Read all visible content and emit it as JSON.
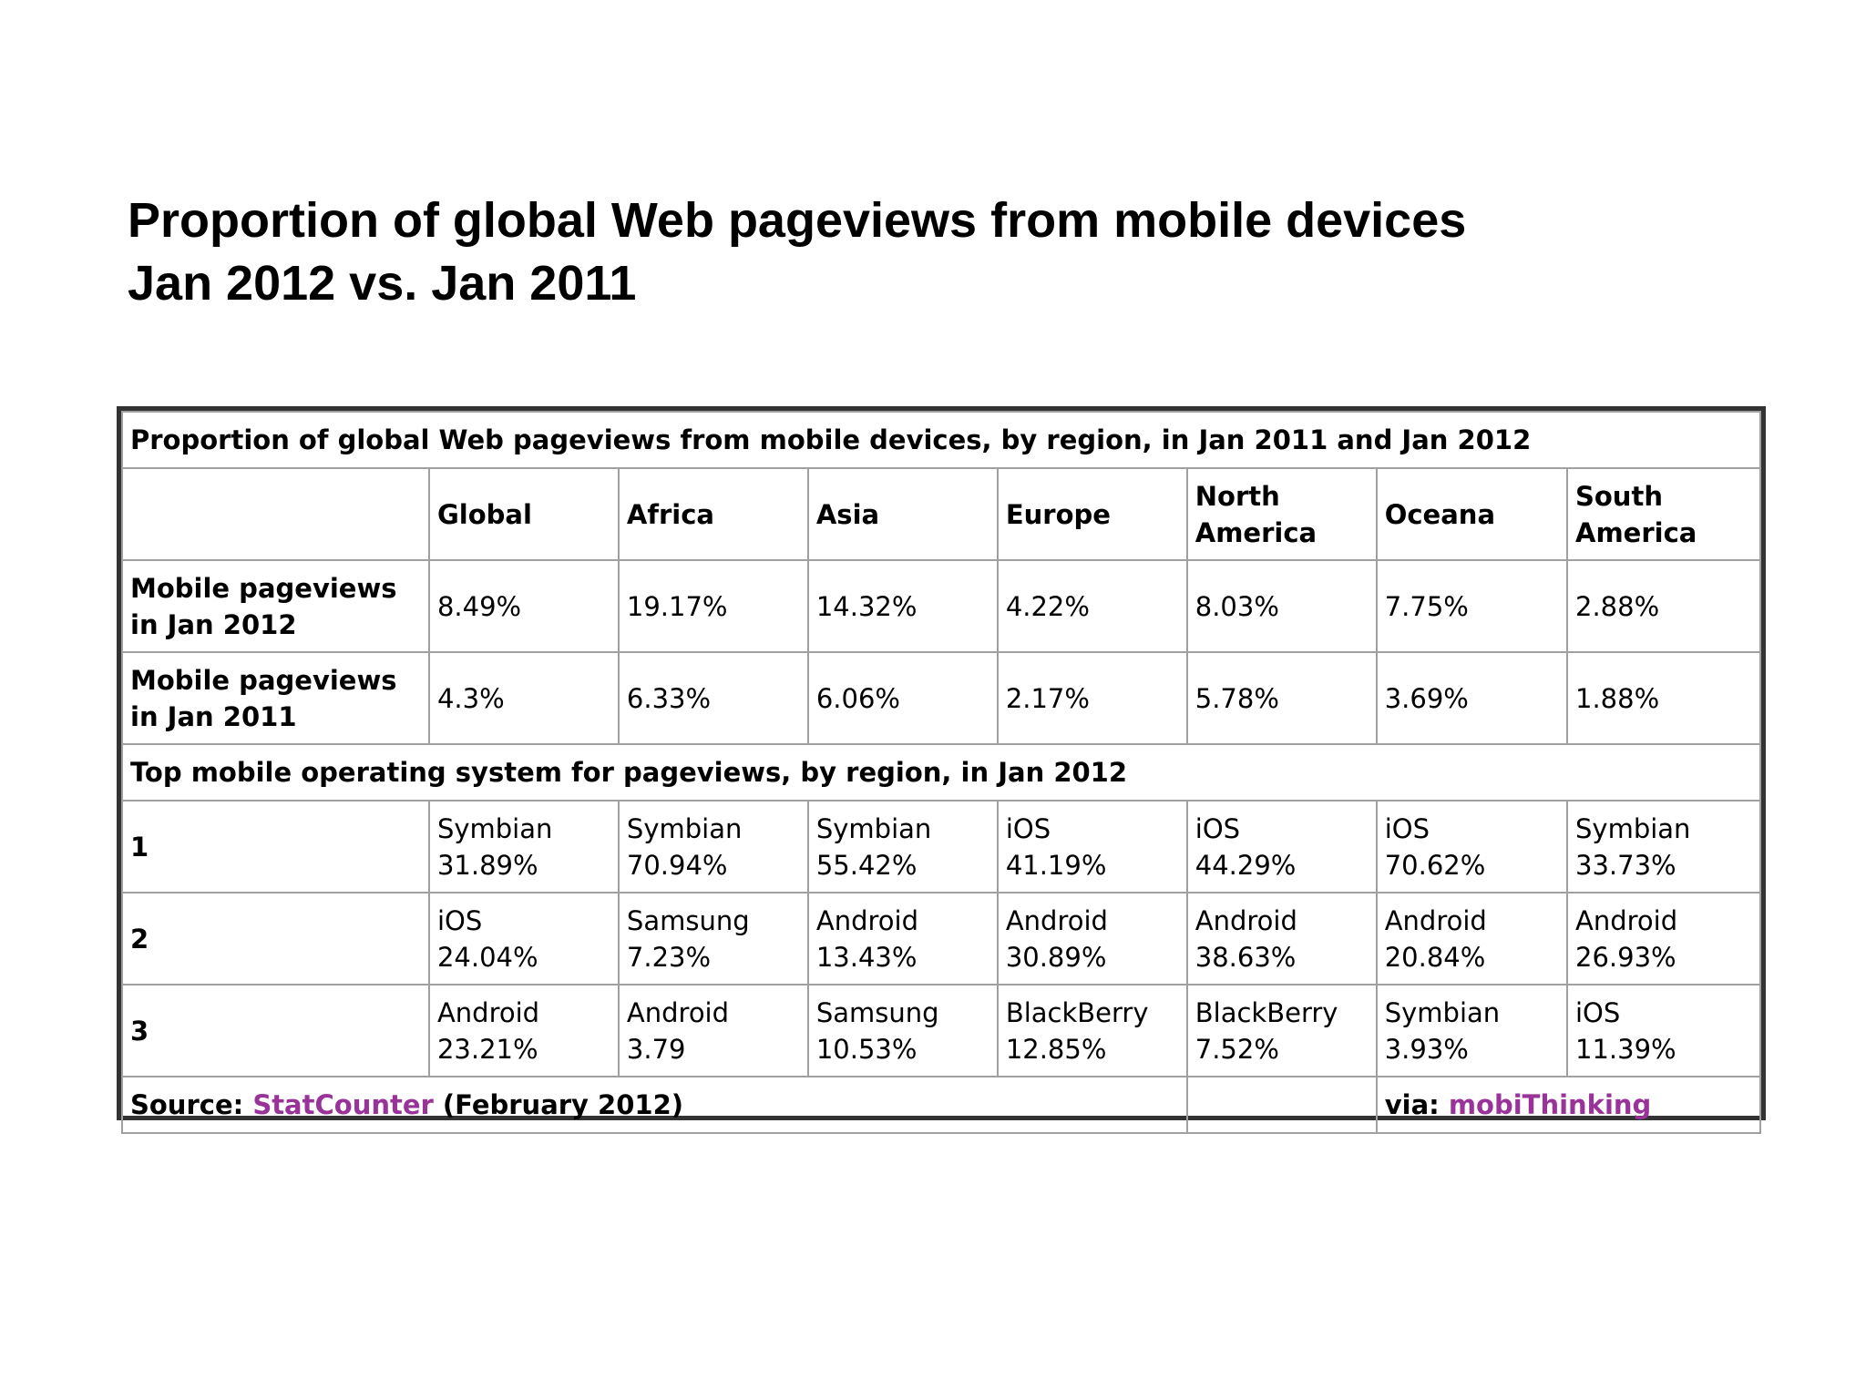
{
  "slide": {
    "title_line1": "Proportion of global Web pageviews from mobile devices",
    "title_line2": "Jan 2012 vs. Jan 2011"
  },
  "chart_data": {
    "type": "table",
    "caption": "Proportion of global Web pageviews from mobile devices, by region, in Jan 2011 and Jan 2012",
    "columns": [
      {
        "line1": "Global",
        "line2": ""
      },
      {
        "line1": "Africa",
        "line2": ""
      },
      {
        "line1": "Asia",
        "line2": ""
      },
      {
        "line1": "Europe",
        "line2": ""
      },
      {
        "line1": "North",
        "line2": "America"
      },
      {
        "line1": "Oceana",
        "line2": ""
      },
      {
        "line1": "South",
        "line2": "America"
      }
    ],
    "pageview_rows": [
      {
        "label_line1": "Mobile pageviews",
        "label_line2": "in Jan 2012",
        "values": [
          "8.49%",
          "19.17%",
          "14.32%",
          "4.22%",
          "8.03%",
          "7.75%",
          "2.88%"
        ]
      },
      {
        "label_line1": "Mobile pageviews",
        "label_line2": "in Jan 2011",
        "values": [
          "4.3%",
          "6.33%",
          "6.06%",
          "2.17%",
          "5.78%",
          "3.69%",
          "1.88%"
        ]
      }
    ],
    "os_section_title": "Top mobile operating system for pageviews, by region, in Jan 2012",
    "os_rows": [
      {
        "rank": "1",
        "cells": [
          {
            "os": "Symbian",
            "share": "31.89%"
          },
          {
            "os": "Symbian",
            "share": "70.94%"
          },
          {
            "os": "Symbian",
            "share": "55.42%"
          },
          {
            "os": "iOS",
            "share": "41.19%"
          },
          {
            "os": "iOS",
            "share": "44.29%"
          },
          {
            "os": "iOS",
            "share": "70.62%"
          },
          {
            "os": "Symbian",
            "share": "33.73%"
          }
        ]
      },
      {
        "rank": "2",
        "cells": [
          {
            "os": "iOS",
            "share": "24.04%"
          },
          {
            "os": "Samsung",
            "share": "7.23%"
          },
          {
            "os": "Android",
            "share": "13.43%"
          },
          {
            "os": "Android",
            "share": "30.89%"
          },
          {
            "os": "Android",
            "share": "38.63%"
          },
          {
            "os": "Android",
            "share": "20.84%"
          },
          {
            "os": "Android",
            "share": "26.93%"
          }
        ]
      },
      {
        "rank": "3",
        "cells": [
          {
            "os": "Android",
            "share": "23.21%"
          },
          {
            "os": "Android",
            "share": "3.79"
          },
          {
            "os": "Samsung",
            "share": "10.53%"
          },
          {
            "os": "BlackBerry",
            "share": "12.85%"
          },
          {
            "os": "BlackBerry",
            "share": "7.52%"
          },
          {
            "os": "Symbian",
            "share": "3.93%"
          },
          {
            "os": "iOS",
            "share": "11.39%"
          }
        ]
      }
    ],
    "footer": {
      "source_prefix": "Source: ",
      "source_link": "StatCounter",
      "source_suffix": " (February 2012)",
      "via_prefix": "via: ",
      "via_link": "mobiThinking"
    }
  },
  "colors": {
    "link": "#993399",
    "frame_border": "#333333",
    "cell_border": "#a0a0a0"
  }
}
